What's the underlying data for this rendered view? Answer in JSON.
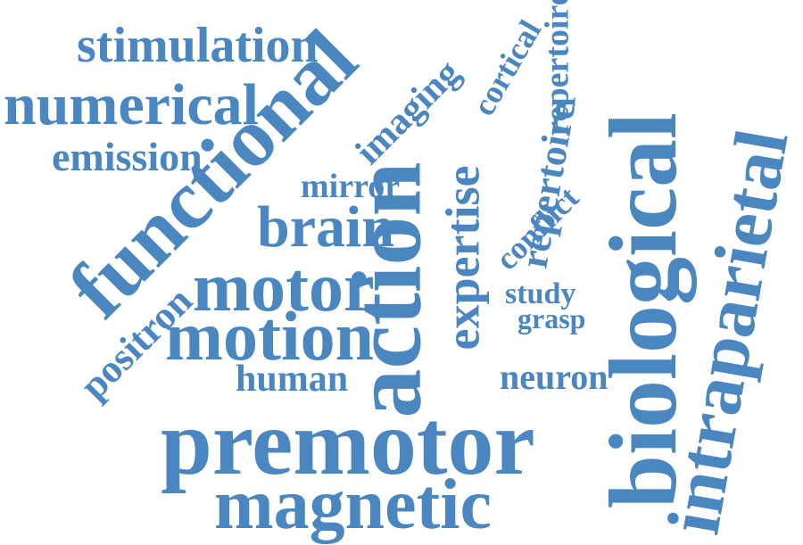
{
  "word_color": "#4a86bf",
  "background": "#ffffff",
  "words": {
    "stimulation": "stimulation",
    "numerical": "numerical",
    "emission": "emission",
    "functional": "functional",
    "imaging": "imaging",
    "cortical": "cortical",
    "repertoire_1": "repertoire",
    "mirror": "mirror",
    "brain": "brain",
    "action": "action",
    "expertise": "expertise",
    "repertoire_2": "repertoire",
    "conflict": "conflict",
    "biological": "biological",
    "intraparietal": "intraparietal",
    "motor": "motor",
    "positron": "positron",
    "study": "study",
    "grasp": "grasp",
    "motion": "motion",
    "human": "human",
    "neuron": "neuron",
    "premotor": "premotor",
    "magnetic": "magnetic"
  }
}
